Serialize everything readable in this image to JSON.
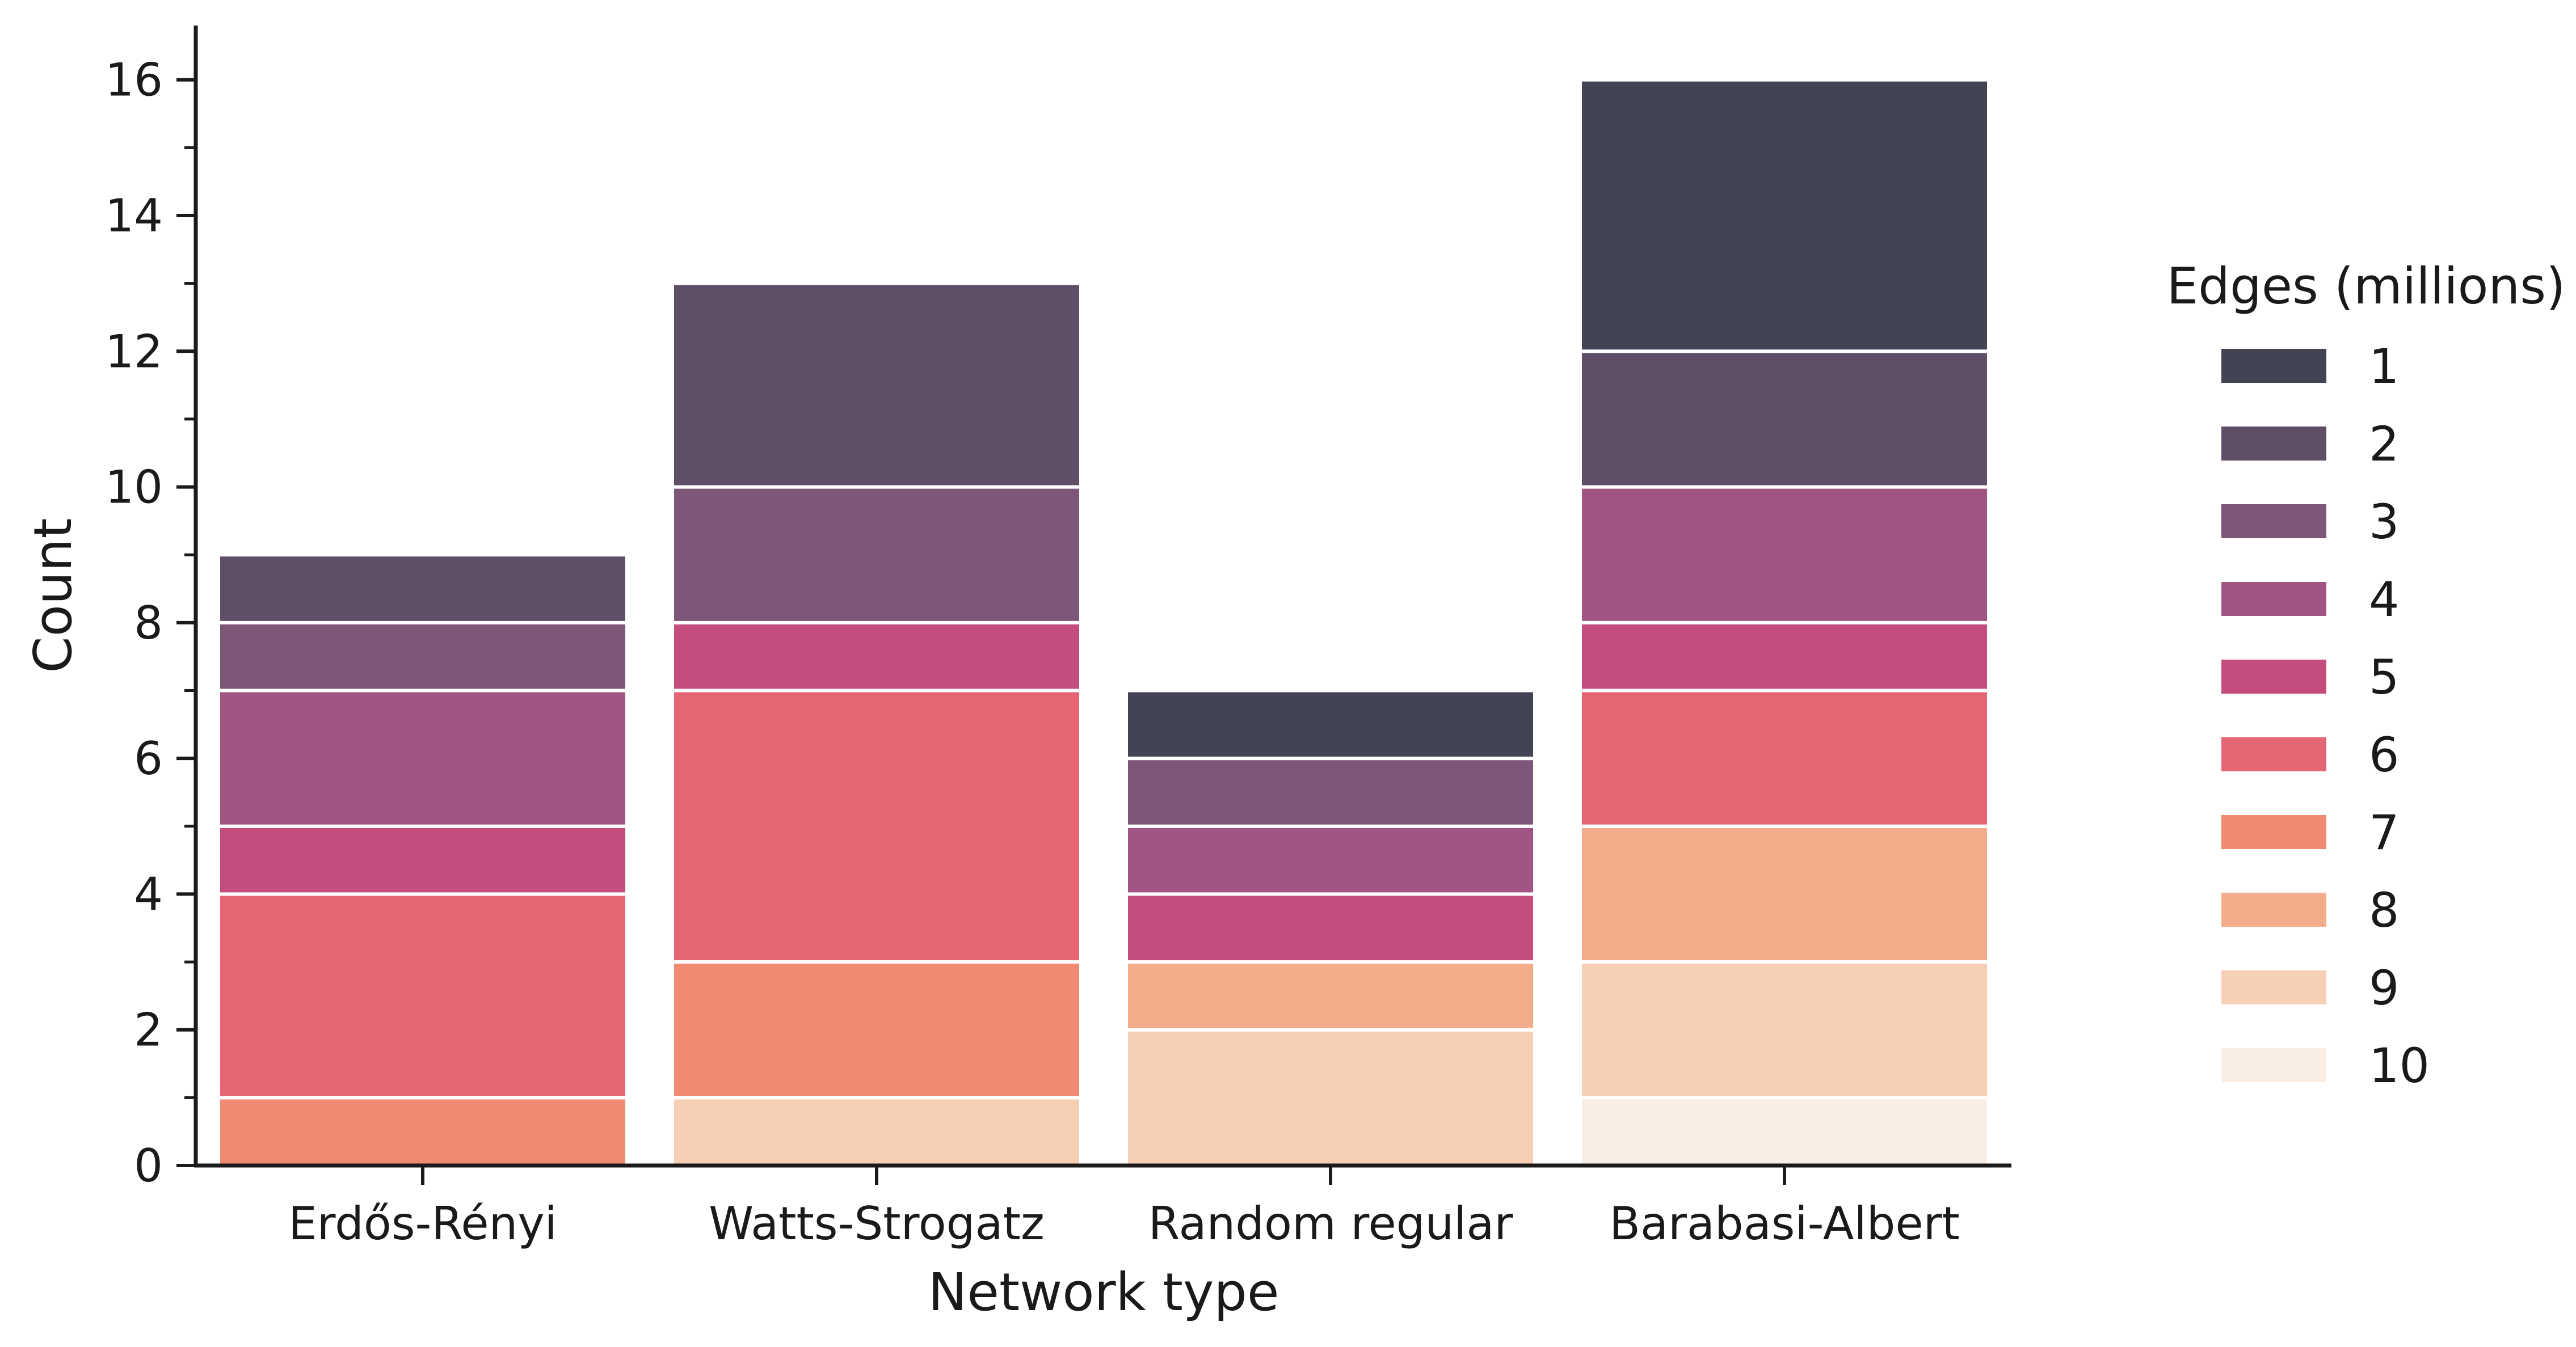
{
  "chart_data": {
    "type": "bar",
    "stacked": true,
    "xlabel": "Network type",
    "ylabel": "Count",
    "ylim": [
      0,
      16.8
    ],
    "yticks": [
      0,
      2,
      4,
      6,
      8,
      10,
      12,
      14,
      16
    ],
    "categories": [
      "Erdős-Rényi",
      "Watts-Strogatz",
      "Random regular",
      "Barabasi-Albert"
    ],
    "legend": {
      "title": "Edges (millions)",
      "position": "right"
    },
    "series": [
      {
        "name": "10",
        "color": "#faeee4",
        "values": [
          0,
          0,
          0,
          1
        ]
      },
      {
        "name": "9",
        "color": "#f7cfb5",
        "values": [
          0,
          1,
          2,
          2
        ]
      },
      {
        "name": "8",
        "color": "#f5ac8b",
        "values": [
          0,
          0,
          1,
          2
        ]
      },
      {
        "name": "7",
        "color": "#f18a72",
        "values": [
          1,
          2,
          0,
          0
        ]
      },
      {
        "name": "6",
        "color": "#e46573",
        "values": [
          3,
          4,
          0,
          2
        ]
      },
      {
        "name": "5",
        "color": "#c44d7e",
        "values": [
          1,
          1,
          1,
          1
        ]
      },
      {
        "name": "4",
        "color": "#a15481",
        "values": [
          2,
          0,
          1,
          2
        ]
      },
      {
        "name": "3",
        "color": "#7e5677",
        "values": [
          1,
          2,
          1,
          0
        ]
      },
      {
        "name": "2",
        "color": "#5e4e66",
        "values": [
          1,
          3,
          0,
          2
        ]
      },
      {
        "name": "1",
        "color": "#424453",
        "values": [
          0,
          0,
          1,
          4
        ]
      }
    ],
    "legend_order": [
      "1",
      "2",
      "3",
      "4",
      "5",
      "6",
      "7",
      "8",
      "9",
      "10"
    ]
  }
}
